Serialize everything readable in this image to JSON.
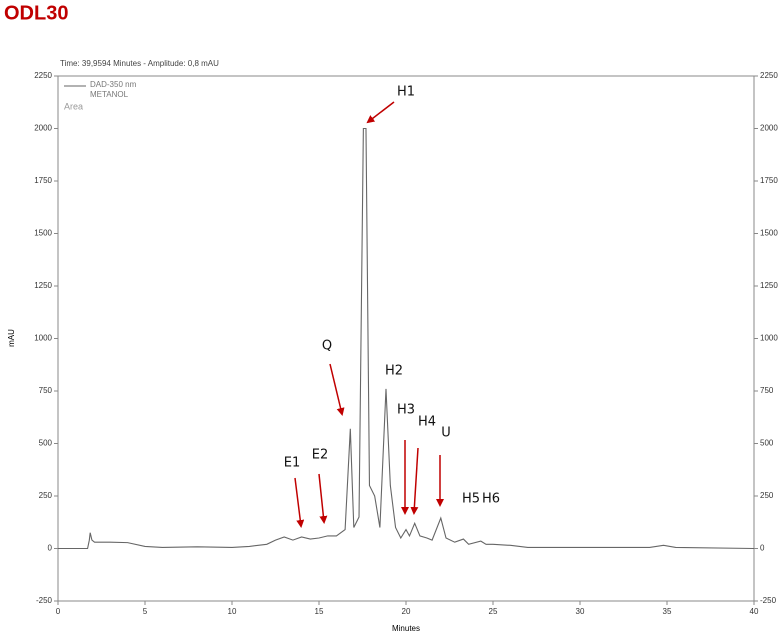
{
  "chart_data": {
    "type": "line",
    "title": "ODL30",
    "subtitle": "Time: 39,9594 Minutes - Amplitude: 0,8 mAU",
    "xlabel": "Minutes",
    "ylabel": "mAU",
    "legend_extra": [
      "METANOL",
      "Area"
    ],
    "xlim": [
      0,
      40
    ],
    "ylim": [
      -250,
      2250
    ],
    "xticks": [
      0,
      5,
      10,
      15,
      20,
      25,
      30,
      35,
      40
    ],
    "yticks": [
      -250,
      0,
      250,
      500,
      750,
      1000,
      1250,
      1500,
      1750,
      2000,
      2250
    ],
    "x": [
      0,
      1.7,
      1.8,
      1.85,
      1.95,
      2.1,
      3,
      4,
      5,
      6,
      8,
      10,
      11,
      12,
      12.5,
      13,
      13.5,
      14,
      14.5,
      15,
      15.5,
      16,
      16.5,
      16.8,
      17.0,
      17.3,
      17.55,
      17.7,
      17.9,
      18.2,
      18.5,
      18.85,
      19.1,
      19.4,
      19.7,
      20,
      20.2,
      20.5,
      20.8,
      21.2,
      21.5,
      22.0,
      22.3,
      22.8,
      23.3,
      23.6,
      24.3,
      24.6,
      25,
      26,
      27,
      30,
      34,
      34.8,
      35.5,
      40
    ],
    "series": [
      {
        "name": "DAD-350 nm",
        "color": "#666666",
        "values": [
          0,
          0,
          40,
          75,
          40,
          30,
          30,
          28,
          10,
          5,
          8,
          5,
          10,
          20,
          40,
          55,
          40,
          55,
          45,
          50,
          60,
          60,
          90,
          570,
          100,
          150,
          2000,
          2000,
          300,
          250,
          100,
          760,
          300,
          100,
          50,
          90,
          60,
          120,
          60,
          50,
          40,
          145,
          50,
          30,
          45,
          20,
          35,
          20,
          20,
          15,
          5,
          5,
          5,
          15,
          5,
          0
        ]
      }
    ],
    "annotations": [
      "H1",
      "Q",
      "H2",
      "H3",
      "H4",
      "U",
      "E1",
      "E2",
      "H5",
      "H6"
    ],
    "annotation_color": "#c00000"
  }
}
